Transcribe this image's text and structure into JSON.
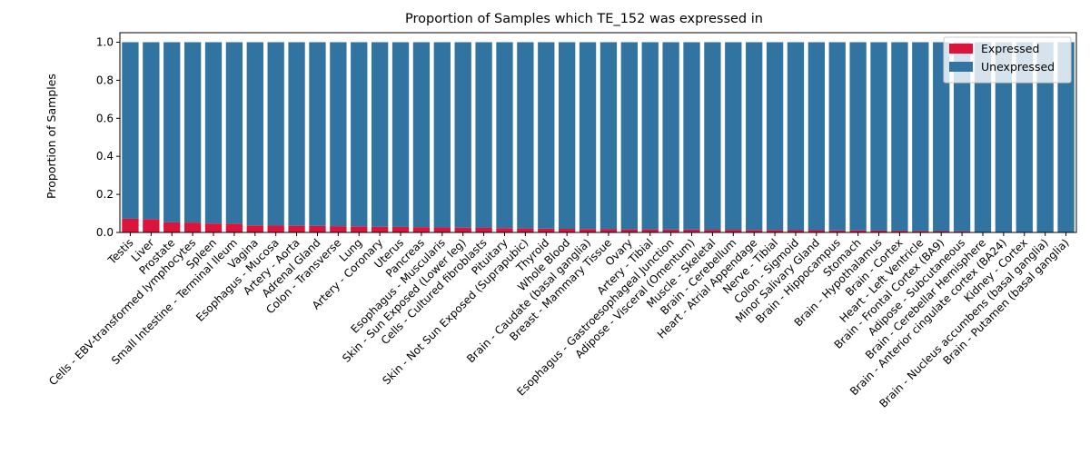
{
  "chart_data": {
    "type": "bar",
    "stacked": true,
    "title": "Proportion of Samples which TE_152 was expressed in",
    "xlabel": "",
    "ylabel": "Proportion of Samples",
    "ylim": [
      0,
      1.05
    ],
    "yticks": [
      "0.0",
      "0.2",
      "0.4",
      "0.6",
      "0.8",
      "1.0"
    ],
    "legend_position": "top-right",
    "categories": [
      "Testis",
      "Liver",
      "Prostate",
      "Cells - EBV-transformed lymphocytes",
      "Spleen",
      "Small Intestine - Terminal Ileum",
      "Vagina",
      "Esophagus - Mucosa",
      "Artery - Aorta",
      "Adrenal Gland",
      "Colon - Transverse",
      "Lung",
      "Artery - Coronary",
      "Uterus",
      "Pancreas",
      "Esophagus - Muscularis",
      "Skin - Sun Exposed (Lower leg)",
      "Cells - Cultured fibroblasts",
      "Pituitary",
      "Skin - Not Sun Exposed (Suprapubic)",
      "Thyroid",
      "Whole Blood",
      "Brain - Caudate (basal ganglia)",
      "Breast - Mammary Tissue",
      "Ovary",
      "Artery - Tibial",
      "Esophagus - Gastroesophageal Junction",
      "Adipose - Visceral (Omentum)",
      "Muscle - Skeletal",
      "Brain - Cerebellum",
      "Heart - Atrial Appendage",
      "Nerve - Tibial",
      "Colon - Sigmoid",
      "Minor Salivary Gland",
      "Brain - Hippocampus",
      "Stomach",
      "Brain - Hypothalamus",
      "Brain - Cortex",
      "Heart - Left Ventricle",
      "Brain - Frontal Cortex (BA9)",
      "Adipose - Subcutaneous",
      "Brain - Cerebellar Hemisphere",
      "Brain - Anterior cingulate cortex (BA24)",
      "Kidney - Cortex",
      "Brain - Nucleus accumbens (basal ganglia)",
      "Brain - Putamen (basal ganglia)"
    ],
    "series": [
      {
        "name": "Expressed",
        "color": "#dc143c",
        "values": [
          0.072,
          0.07,
          0.053,
          0.052,
          0.047,
          0.046,
          0.037,
          0.036,
          0.035,
          0.034,
          0.033,
          0.032,
          0.03,
          0.029,
          0.028,
          0.026,
          0.025,
          0.024,
          0.023,
          0.021,
          0.02,
          0.019,
          0.018,
          0.017,
          0.016,
          0.016,
          0.015,
          0.015,
          0.014,
          0.014,
          0.013,
          0.013,
          0.012,
          0.012,
          0.011,
          0.011,
          0.01,
          0.009,
          0.008,
          0.007,
          0.006,
          0.0,
          0.0,
          0.0,
          0.0,
          0.0
        ]
      },
      {
        "name": "Unexpressed",
        "color": "#3274a1",
        "values": [
          0.928,
          0.93,
          0.947,
          0.948,
          0.953,
          0.954,
          0.963,
          0.964,
          0.965,
          0.966,
          0.967,
          0.968,
          0.97,
          0.971,
          0.972,
          0.974,
          0.975,
          0.976,
          0.977,
          0.979,
          0.98,
          0.981,
          0.982,
          0.983,
          0.984,
          0.984,
          0.985,
          0.985,
          0.986,
          0.986,
          0.987,
          0.987,
          0.988,
          0.988,
          0.989,
          0.989,
          0.99,
          0.991,
          0.992,
          0.993,
          0.994,
          1.0,
          1.0,
          1.0,
          1.0,
          1.0
        ]
      }
    ]
  }
}
